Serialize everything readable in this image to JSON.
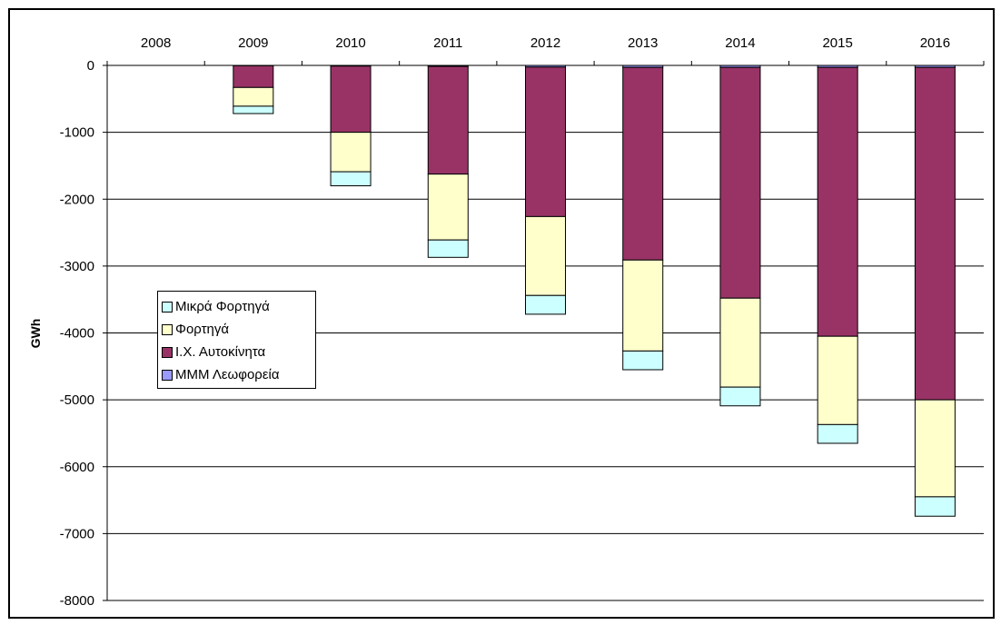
{
  "chart_data": {
    "type": "bar",
    "stacked": true,
    "categories": [
      "2008",
      "2009",
      "2010",
      "2011",
      "2012",
      "2013",
      "2014",
      "2015",
      "2016"
    ],
    "category_axis_position": "top",
    "ylabel": "GWh",
    "ylim": [
      -8000,
      0
    ],
    "yticks": [
      "0",
      "-1000",
      "-2000",
      "-3000",
      "-4000",
      "-5000",
      "-6000",
      "-7000",
      "-8000"
    ],
    "grid": "horizontal",
    "legend_position": "left-middle",
    "series": [
      {
        "name": "ΜΜΜ Λεωφορεία",
        "color": "#9999ff",
        "values": [
          0,
          -5,
          -10,
          -15,
          -25,
          -30,
          -30,
          -30,
          -30
        ]
      },
      {
        "name": "Ι.Χ. Αυτοκίνητα",
        "color": "#993366",
        "values": [
          0,
          -325,
          -990,
          -1610,
          -2235,
          -2880,
          -3450,
          -4020,
          -4970
        ]
      },
      {
        "name": "Φορτηγά",
        "color": "#ffffcc",
        "values": [
          0,
          -280,
          -590,
          -985,
          -1180,
          -1360,
          -1330,
          -1320,
          -1450
        ]
      },
      {
        "name": "Μικρά Φορτηγά",
        "color": "#ccffff",
        "values": [
          0,
          -110,
          -210,
          -260,
          -280,
          -280,
          -280,
          -280,
          -290
        ]
      }
    ],
    "legend_order": [
      "Μικρά Φορτηγά",
      "Φορτηγά",
      "Ι.Χ. Αυτοκίνητα",
      "ΜΜΜ Λεωφορεία"
    ]
  }
}
